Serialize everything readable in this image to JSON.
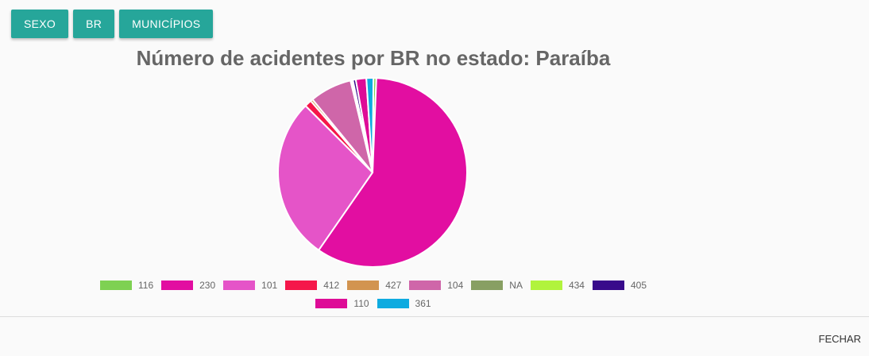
{
  "tabs": [
    {
      "label": "SEXO"
    },
    {
      "label": "BR"
    },
    {
      "label": "MUNICÍPIOS"
    }
  ],
  "footer": {
    "close_label": "FECHAR"
  },
  "colors": {
    "button": "#26a69a"
  },
  "chart_data": {
    "type": "pie",
    "title": "Número de acidentes por BR no estado: Paraíba",
    "legend_position": "bottom",
    "series": [
      {
        "label": "116",
        "value": 0.5,
        "color": "#7ed152"
      },
      {
        "label": "230",
        "value": 59.0,
        "color": "#e20ea1"
      },
      {
        "label": "101",
        "value": 27.8,
        "color": "#e554c8"
      },
      {
        "label": "412",
        "value": 1.2,
        "color": "#f5174a"
      },
      {
        "label": "427",
        "value": 0.4,
        "color": "#d29450"
      },
      {
        "label": "104",
        "value": 7.2,
        "color": "#cf66a9"
      },
      {
        "label": "NA",
        "value": 0.2,
        "color": "#889f63"
      },
      {
        "label": "434",
        "value": 0.2,
        "color": "#b1f33d"
      },
      {
        "label": "405",
        "value": 0.5,
        "color": "#380a8b"
      },
      {
        "label": "110",
        "value": 1.8,
        "color": "#de0c97"
      },
      {
        "label": "361",
        "value": 1.2,
        "color": "#0eabe0"
      }
    ]
  }
}
